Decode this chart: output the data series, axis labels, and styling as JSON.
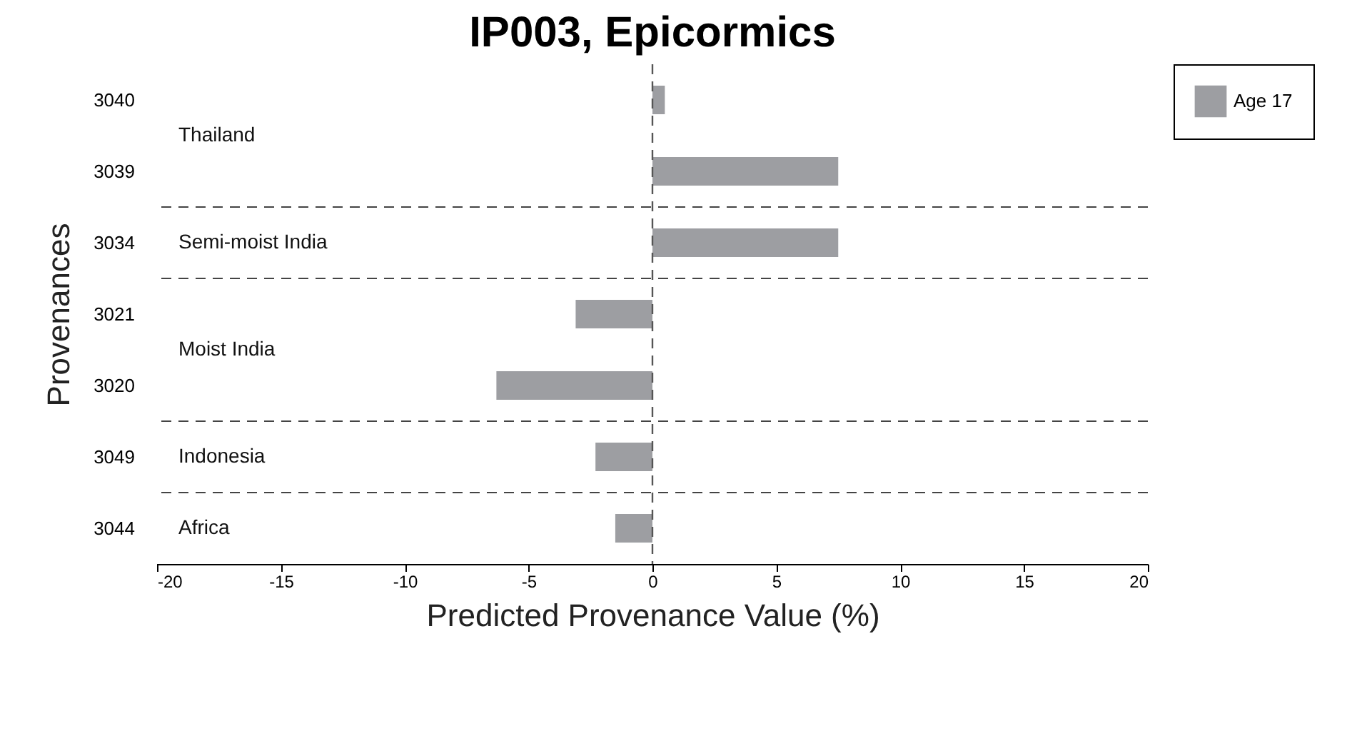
{
  "chart_data": {
    "type": "bar",
    "orientation": "horizontal",
    "title": "IP003, Epicormics",
    "xlabel": "Predicted Provenance Value (%)",
    "ylabel": "Provenances",
    "categories": [
      "3040",
      "3039",
      "3034",
      "3021",
      "3020",
      "3049",
      "3044"
    ],
    "series": [
      {
        "name": "Age 17",
        "color": "#9d9ea2",
        "values": [
          0.5,
          7.5,
          7.5,
          -3.1,
          -6.3,
          -2.3,
          -1.5
        ]
      }
    ],
    "xlim": [
      -20,
      20
    ],
    "xticks": [
      -20,
      -15,
      -10,
      -5,
      0,
      5,
      10,
      15,
      20
    ],
    "ref_lines": [
      {
        "axis": "x",
        "value": 0,
        "line_style": "dashed",
        "color": "#555555"
      }
    ],
    "bands": [
      {
        "axis": "y",
        "from": "3040",
        "to": "3039",
        "label": "Thailand",
        "color": "#ffffff"
      },
      {
        "axis": "y",
        "from": "3034",
        "to": "3034",
        "label": "Semi-moist India",
        "color": "#ffffff"
      },
      {
        "axis": "y",
        "from": "3021",
        "to": "3020",
        "label": "Moist India",
        "color": "#ffffff"
      },
      {
        "axis": "y",
        "from": "3049",
        "to": "3049",
        "label": "Indonesia",
        "color": "#ffffff"
      },
      {
        "axis": "y",
        "from": "3044",
        "to": "3044",
        "label": "Africa",
        "color": "#ffffff"
      }
    ],
    "grid": false,
    "legend": "top right"
  }
}
